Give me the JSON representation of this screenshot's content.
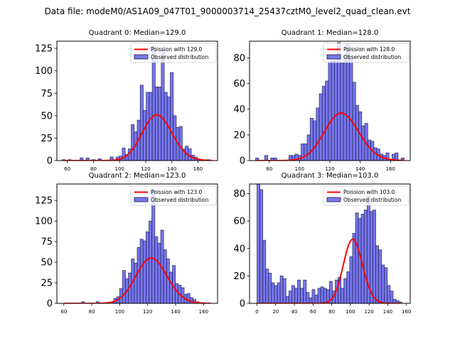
{
  "figure": {
    "suptitle": "Data file: modeM0/AS1A09_047T01_9000003714_25437cztM0_level2_quad_clean.evt"
  },
  "colors": {
    "bar_fill": "#7777ee",
    "bar_edge": "#1a1a4a",
    "poisson_line": "#ff0000",
    "axes": "#000000"
  },
  "chart_data": [
    {
      "type": "bar",
      "title": "Quadrant 0: Median=129.0",
      "legend": [
        "Poission with 129.0",
        "Observed distribution"
      ],
      "legend_position": "top-right",
      "xlabel": "",
      "ylabel": "",
      "xlim": [
        52,
        175
      ],
      "ylim": [
        0,
        133
      ],
      "xticks": [
        60,
        80,
        100,
        120,
        140,
        160
      ],
      "yticks": [
        0,
        25,
        50,
        75,
        100,
        125
      ],
      "poisson_mean": 129.0,
      "poisson_scale": 1450,
      "bin_width": 2.3,
      "bins_start": [
        56.0,
        58.3,
        60.6,
        62.9,
        65.2,
        67.5,
        69.8,
        72.1,
        74.4,
        76.7,
        79.0,
        81.3,
        83.6,
        85.9,
        88.2,
        90.5,
        92.8,
        95.1,
        97.4,
        99.7,
        102.0,
        104.3,
        106.6,
        108.9,
        111.2,
        113.5,
        115.8,
        118.1,
        120.4,
        122.7,
        125.0,
        127.3,
        129.6,
        131.9,
        134.2,
        136.5,
        138.8,
        141.1,
        143.4,
        145.7,
        148.0,
        150.3,
        152.6,
        154.9,
        157.2,
        159.5,
        161.8,
        164.1,
        166.4,
        168.7
      ],
      "values": [
        1,
        0,
        1,
        0,
        0,
        0,
        3,
        0,
        3,
        0,
        1,
        0,
        2,
        0,
        0,
        0,
        4,
        0,
        4,
        5,
        14,
        7,
        13,
        40,
        32,
        45,
        84,
        56,
        76,
        76,
        127,
        82,
        82,
        123,
        76,
        71,
        98,
        50,
        37,
        38,
        13,
        16,
        13,
        6,
        4,
        2,
        1,
        0,
        1,
        0
      ]
    },
    {
      "type": "bar",
      "title": "Quadrant 1: Median=128.0",
      "legend": [
        "Poission with 128.0",
        "Observed distribution"
      ],
      "legend_position": "top-right",
      "xlabel": "",
      "ylabel": "",
      "xlim": [
        67,
        173
      ],
      "ylim": [
        0,
        93
      ],
      "xticks": [
        80,
        100,
        120,
        140,
        160
      ],
      "yticks": [
        0,
        20,
        40,
        60,
        80
      ],
      "poisson_mean": 128.0,
      "poisson_scale": 1050,
      "bin_width": 2.0,
      "bins_start": [
        71,
        73,
        75,
        77,
        79,
        81,
        83,
        85,
        87,
        89,
        91,
        93,
        95,
        97,
        99,
        101,
        103,
        105,
        107,
        109,
        111,
        113,
        115,
        117,
        119,
        121,
        123,
        125,
        127,
        129,
        131,
        133,
        135,
        137,
        139,
        141,
        143,
        145,
        147,
        149,
        151,
        153,
        155,
        157,
        159,
        161,
        163,
        165,
        167
      ],
      "values": [
        2,
        0,
        0,
        4,
        0,
        2,
        2,
        0,
        0,
        0,
        0,
        4,
        4,
        5,
        4,
        13,
        13,
        20,
        33,
        31,
        41,
        52,
        58,
        62,
        77,
        78,
        78,
        92,
        76,
        82,
        91,
        79,
        61,
        43,
        38,
        27,
        29,
        16,
        15,
        10,
        9,
        5,
        4,
        6,
        1,
        5,
        6,
        0,
        2
      ]
    },
    {
      "type": "bar",
      "title": "Quadrant 2: Median=123.0",
      "legend": [
        "Poission with 123.0",
        "Observed distribution"
      ],
      "legend_position": "top-right",
      "xlabel": "",
      "ylabel": "",
      "xlim": [
        55,
        170
      ],
      "ylim": [
        0,
        145
      ],
      "xticks": [
        60,
        80,
        100,
        120,
        140,
        160
      ],
      "yticks": [
        0,
        25,
        50,
        75,
        100,
        125
      ],
      "poisson_mean": 123.0,
      "poisson_scale": 1530,
      "bin_width": 2.1,
      "bins_start": [
        60.0,
        62.1,
        64.2,
        66.3,
        68.4,
        70.5,
        72.6,
        74.7,
        76.8,
        78.9,
        81.0,
        83.1,
        85.2,
        87.3,
        89.4,
        91.5,
        93.6,
        95.7,
        97.8,
        99.9,
        102.0,
        104.1,
        106.2,
        108.3,
        110.4,
        112.5,
        114.6,
        116.7,
        118.8,
        120.9,
        123.0,
        125.1,
        127.2,
        129.3,
        131.4,
        133.5,
        135.6,
        137.7,
        139.8,
        141.9,
        144.0,
        146.1,
        148.2,
        150.3,
        152.4,
        154.5,
        156.6,
        158.7,
        160.8,
        162.9
      ],
      "values": [
        0,
        0,
        0,
        0,
        0,
        0,
        2,
        0,
        0,
        0,
        0,
        2,
        0,
        0,
        0,
        1,
        2,
        6,
        8,
        18,
        40,
        30,
        37,
        54,
        49,
        68,
        78,
        76,
        87,
        100,
        138,
        81,
        73,
        89,
        65,
        54,
        38,
        46,
        24,
        22,
        19,
        11,
        12,
        7,
        5,
        2,
        1,
        0,
        0,
        0
      ]
    },
    {
      "type": "bar",
      "title": "Quadrant 3: Median=103.0",
      "legend": [
        "Poission with 103.0",
        "Observed distribution"
      ],
      "legend_position": "top-right",
      "xlabel": "",
      "ylabel": "",
      "xlim": [
        -8,
        164
      ],
      "ylim": [
        0,
        87
      ],
      "xticks": [
        0,
        20,
        40,
        60,
        80,
        100,
        120,
        140,
        160
      ],
      "yticks": [
        0,
        20,
        40,
        60,
        80
      ],
      "poisson_mean": 103.0,
      "poisson_scale": 1190,
      "bin_width": 3.1,
      "bins_start": [
        0.0,
        3.1,
        6.2,
        9.3,
        12.4,
        15.5,
        18.6,
        21.7,
        24.8,
        27.9,
        31.0,
        34.1,
        37.2,
        40.3,
        43.4,
        46.5,
        49.6,
        52.7,
        55.8,
        58.9,
        62.0,
        65.1,
        68.2,
        71.3,
        74.4,
        77.5,
        80.6,
        83.7,
        86.8,
        89.9,
        93.0,
        96.1,
        99.2,
        102.3,
        105.4,
        108.5,
        111.6,
        114.7,
        117.8,
        120.9,
        124.0,
        127.1,
        130.2,
        133.3,
        136.4,
        139.5,
        142.6,
        145.7,
        148.8,
        151.9
      ],
      "values": [
        87,
        83,
        46,
        25,
        22,
        15,
        13,
        15,
        20,
        18,
        5,
        9,
        13,
        11,
        17,
        11,
        17,
        8,
        4,
        10,
        6,
        11,
        12,
        11,
        10,
        16,
        9,
        17,
        19,
        11,
        18,
        23,
        34,
        51,
        66,
        62,
        65,
        68,
        78,
        67,
        68,
        42,
        39,
        28,
        26,
        13,
        9,
        3,
        2,
        1
      ]
    }
  ]
}
